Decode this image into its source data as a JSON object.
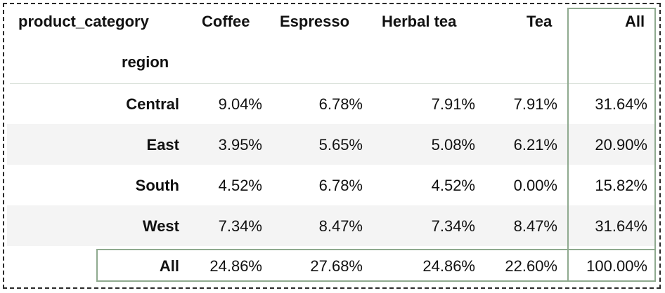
{
  "table": {
    "columns_name": "product_category",
    "index_name": "region",
    "columns": [
      "Coffee",
      "Espresso",
      "Herbal tea",
      "Tea",
      "All"
    ],
    "rows": [
      {
        "label": "Central",
        "values": [
          "9.04%",
          "6.78%",
          "7.91%",
          "7.91%",
          "31.64%"
        ]
      },
      {
        "label": "East",
        "values": [
          "3.95%",
          "5.65%",
          "5.08%",
          "6.21%",
          "20.90%"
        ]
      },
      {
        "label": "South",
        "values": [
          "4.52%",
          "6.78%",
          "4.52%",
          "0.00%",
          "15.82%"
        ]
      },
      {
        "label": "West",
        "values": [
          "7.34%",
          "8.47%",
          "7.34%",
          "8.47%",
          "31.64%"
        ]
      },
      {
        "label": "All",
        "values": [
          "24.86%",
          "27.68%",
          "24.86%",
          "22.60%",
          "100.00%"
        ]
      }
    ]
  },
  "colors": {
    "highlight_border": "#8faa8f",
    "stripe": "#f4f4f4",
    "text": "#111111"
  }
}
